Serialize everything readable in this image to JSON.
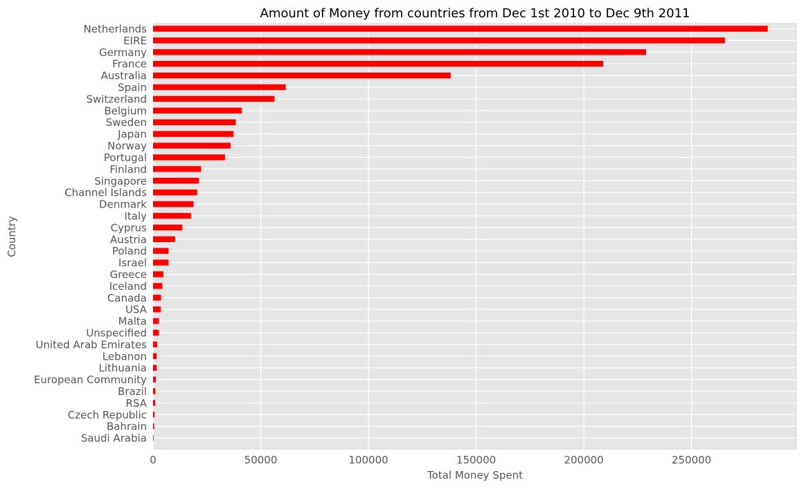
{
  "chart_data": {
    "type": "bar",
    "orientation": "horizontal",
    "title": "Amount of Money from countries from Dec 1st 2010 to Dec 9th 2011",
    "xlabel": "Total Money Spent",
    "ylabel": "Country",
    "xlim": [
      0,
      299000
    ],
    "xticks": [
      0,
      50000,
      100000,
      150000,
      200000,
      250000
    ],
    "grid": true,
    "bar_color": "#ff0000",
    "background_color": "#e5e5e5",
    "grid_color": "#ffffff",
    "categories": [
      "Netherlands",
      "EIRE",
      "Germany",
      "France",
      "Australia",
      "Spain",
      "Switzerland",
      "Belgium",
      "Sweden",
      "Japan",
      "Norway",
      "Portugal",
      "Finland",
      "Singapore",
      "Channel Islands",
      "Denmark",
      "Italy",
      "Cyprus",
      "Austria",
      "Poland",
      "Israel",
      "Greece",
      "Iceland",
      "Canada",
      "USA",
      "Malta",
      "Unspecified",
      "United Arab Emirates",
      "Lebanon",
      "Lithuania",
      "European Community",
      "Brazil",
      "RSA",
      "Czech Republic",
      "Bahrain",
      "Saudi Arabia"
    ],
    "values": [
      285400,
      265500,
      228900,
      209000,
      138200,
      61600,
      56400,
      41200,
      38400,
      37400,
      36000,
      33400,
      22300,
      21300,
      20500,
      18800,
      17600,
      13600,
      10200,
      7200,
      7200,
      4800,
      4300,
      3700,
      3600,
      2700,
      2700,
      1900,
      1700,
      1700,
      1300,
      1100,
      1000,
      700,
      550,
      130
    ]
  }
}
